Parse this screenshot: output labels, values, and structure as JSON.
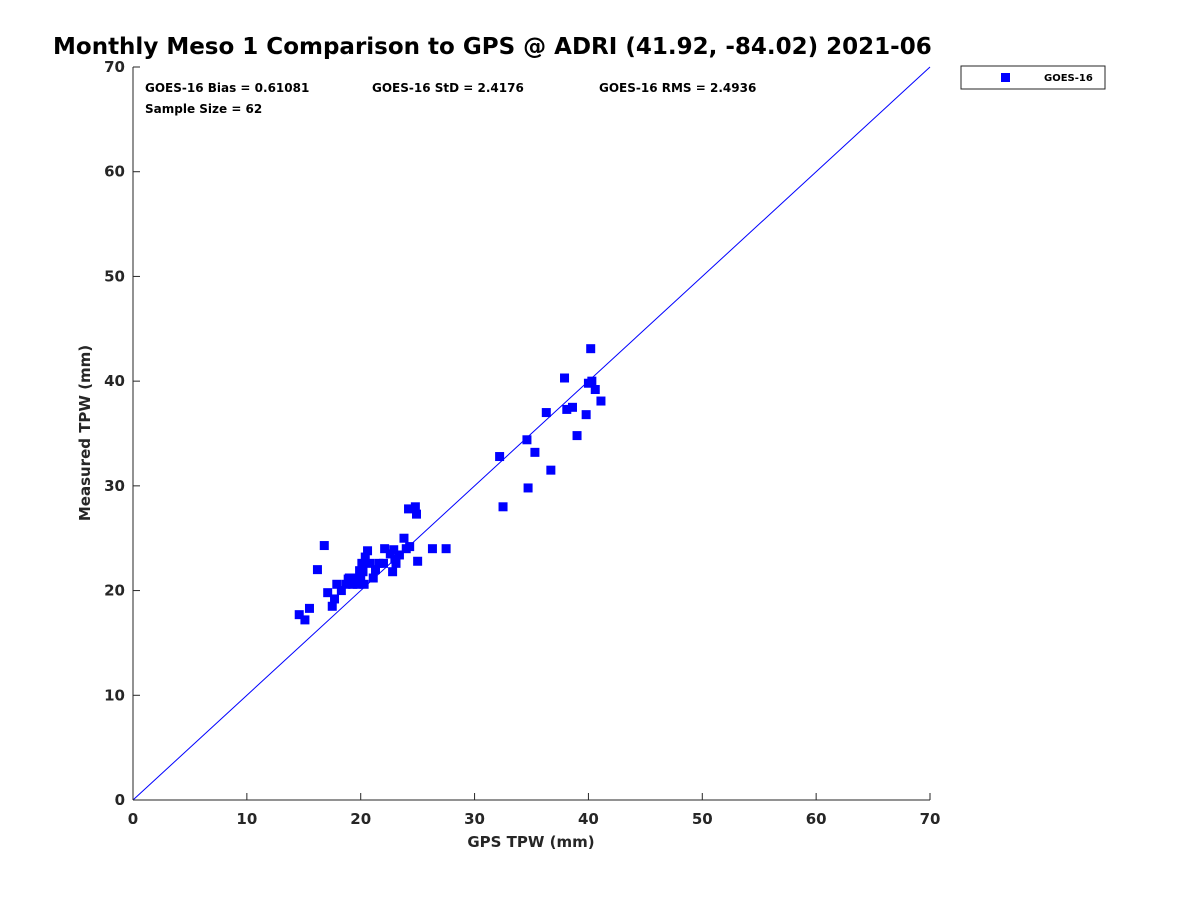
{
  "chart_data": {
    "type": "scatter",
    "title": "Monthly Meso 1 Comparison to GPS @ ADRI (41.92, -84.02) 2021-06",
    "xlabel": "GPS TPW (mm)",
    "ylabel": "Measured TPW (mm)",
    "xlim": [
      0,
      70
    ],
    "ylim": [
      0,
      70
    ],
    "xticks": [
      "0",
      "10",
      "20",
      "30",
      "40",
      "50",
      "60",
      "70"
    ],
    "yticks": [
      "0",
      "10",
      "20",
      "30",
      "40",
      "50",
      "60",
      "70"
    ],
    "grid": false,
    "legend_position": "top-right, outside plot",
    "reference_line": {
      "from": [
        0,
        0
      ],
      "to": [
        70,
        70
      ],
      "color": "#0000ff"
    },
    "stats": {
      "bias": "GOES-16 Bias = 0.61081",
      "std": "GOES-16 StD = 2.4176",
      "rms": "GOES-16 RMS = 2.4936",
      "sample": "Sample Size = 62"
    },
    "series": [
      {
        "name": "GOES-16",
        "color": "#0000ff",
        "marker": "square",
        "points": [
          [
            14.6,
            17.7
          ],
          [
            15.1,
            17.2
          ],
          [
            15.5,
            18.3
          ],
          [
            16.2,
            22.0
          ],
          [
            16.8,
            24.3
          ],
          [
            17.1,
            19.8
          ],
          [
            17.5,
            18.5
          ],
          [
            17.7,
            19.2
          ],
          [
            17.9,
            20.6
          ],
          [
            18.3,
            20.0
          ],
          [
            18.7,
            20.6
          ],
          [
            19.0,
            21.2
          ],
          [
            19.3,
            20.6
          ],
          [
            19.5,
            21.2
          ],
          [
            19.7,
            20.6
          ],
          [
            19.9,
            21.9
          ],
          [
            20.0,
            21.2
          ],
          [
            20.1,
            22.6
          ],
          [
            20.3,
            20.6
          ],
          [
            20.4,
            23.2
          ],
          [
            20.6,
            23.8
          ],
          [
            20.8,
            22.6
          ],
          [
            21.1,
            21.2
          ],
          [
            21.3,
            22.0
          ],
          [
            21.6,
            22.6
          ],
          [
            22.0,
            22.6
          ],
          [
            22.1,
            24.0
          ],
          [
            22.6,
            23.5
          ],
          [
            22.8,
            21.8
          ],
          [
            23.0,
            23.0
          ],
          [
            23.1,
            22.6
          ],
          [
            23.4,
            23.4
          ],
          [
            23.8,
            25.0
          ],
          [
            24.0,
            24.0
          ],
          [
            24.2,
            27.8
          ],
          [
            24.3,
            24.2
          ],
          [
            24.8,
            28.0
          ],
          [
            24.9,
            27.3
          ],
          [
            25.0,
            22.8
          ],
          [
            26.3,
            24.0
          ],
          [
            27.5,
            24.0
          ],
          [
            32.2,
            32.8
          ],
          [
            32.5,
            28.0
          ],
          [
            34.6,
            34.4
          ],
          [
            34.7,
            29.8
          ],
          [
            35.3,
            33.2
          ],
          [
            36.3,
            37.0
          ],
          [
            36.7,
            31.5
          ],
          [
            37.9,
            40.3
          ],
          [
            38.1,
            37.3
          ],
          [
            38.6,
            37.5
          ],
          [
            39.0,
            34.8
          ],
          [
            39.8,
            36.8
          ],
          [
            40.0,
            39.8
          ],
          [
            40.2,
            43.1
          ],
          [
            40.3,
            40.0
          ],
          [
            40.6,
            39.2
          ],
          [
            41.1,
            38.1
          ],
          [
            19.4,
            20.9
          ],
          [
            20.2,
            21.8
          ],
          [
            22.9,
            23.9
          ],
          [
            18.9,
            21.1
          ]
        ]
      }
    ]
  }
}
